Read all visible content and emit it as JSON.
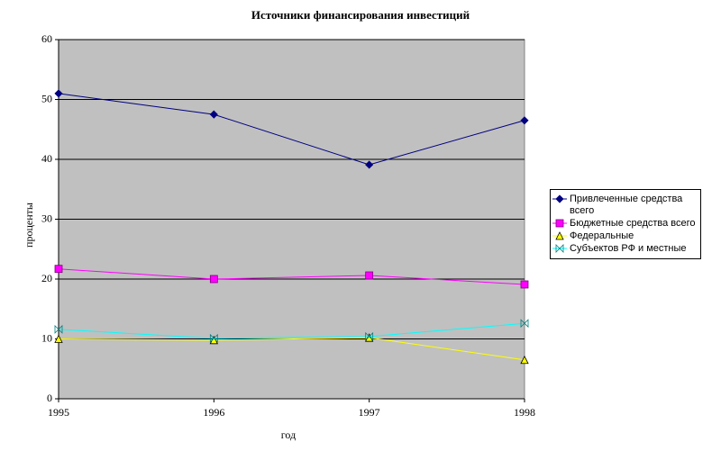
{
  "chart_data": {
    "type": "line",
    "title": "Источники финансирования инвестиций",
    "x_label": "год",
    "y_label": "проценты",
    "x": [
      1995,
      1996,
      1997,
      1998
    ],
    "xlim": [
      1995,
      1998
    ],
    "xticks": [
      1995,
      1996,
      1997,
      1998
    ],
    "ylim": [
      0,
      60
    ],
    "yticks": [
      0,
      10,
      20,
      30,
      40,
      50,
      60
    ],
    "grid": true,
    "legend": "right",
    "series": [
      {
        "name": "Привлеченные средства всего",
        "color": "#000080",
        "marker": "diamond",
        "values": [
          51.0,
          47.5,
          39.1,
          46.5
        ]
      },
      {
        "name": "Бюджетные средства всего",
        "color": "#ff00ff",
        "marker": "square",
        "values": [
          21.7,
          20.0,
          20.6,
          19.1
        ]
      },
      {
        "name": "Федеральные",
        "color": "#ffff00",
        "marker": "triangle",
        "values": [
          10.0,
          9.8,
          10.2,
          6.5
        ]
      },
      {
        "name": "Субъектов РФ и местные",
        "color": "#00ffff",
        "marker": "bowtie",
        "values": [
          11.6,
          10.1,
          10.4,
          12.6
        ]
      }
    ]
  }
}
